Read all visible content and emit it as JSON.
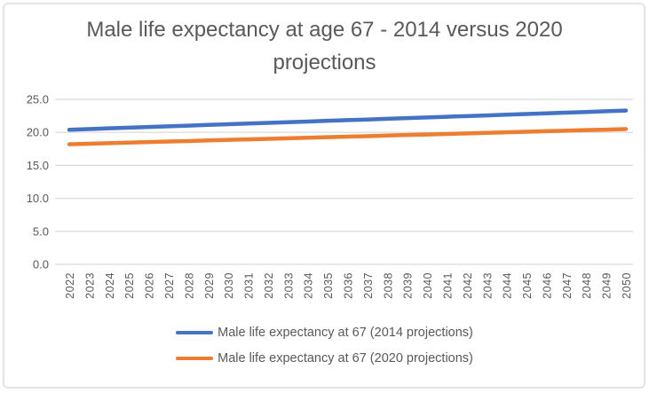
{
  "title": {
    "line1": "Male life expectancy at age 67 - 2014 versus 2020",
    "line2": "projections",
    "color": "#595959"
  },
  "colors": {
    "grid": "#d9d9d9",
    "axis_text": "#595959",
    "border": "#e4e4e4",
    "series_2014": "#4472C4",
    "series_2020": "#ED7D31"
  },
  "chart_data": {
    "type": "line",
    "title": "Male life expectancy at age 67 - 2014 versus 2020 projections",
    "xlabel": "",
    "ylabel": "",
    "ylim": [
      0,
      25
    ],
    "y_ticks": [
      "0.0",
      "5.0",
      "10.0",
      "15.0",
      "20.0",
      "25.0"
    ],
    "grid": "horizontal",
    "legend_position": "bottom",
    "x": [
      "2022",
      "2023",
      "2024",
      "2025",
      "2026",
      "2027",
      "2028",
      "2029",
      "2030",
      "2031",
      "2032",
      "2033",
      "2034",
      "2035",
      "2036",
      "2037",
      "2038",
      "2039",
      "2040",
      "2041",
      "2042",
      "2043",
      "2044",
      "2045",
      "2046",
      "2047",
      "2048",
      "2049",
      "2050"
    ],
    "series": [
      {
        "name": "Male life expectancy at 67 (2014 projections)",
        "color": "#4472C4",
        "values": [
          20.4,
          20.5,
          20.61,
          20.71,
          20.81,
          20.92,
          21.02,
          21.13,
          21.23,
          21.33,
          21.44,
          21.54,
          21.64,
          21.75,
          21.85,
          21.95,
          22.06,
          22.16,
          22.26,
          22.37,
          22.47,
          22.57,
          22.68,
          22.78,
          22.89,
          22.99,
          23.09,
          23.2,
          23.3
        ]
      },
      {
        "name": "Male life expectancy at 67 (2020 projections)",
        "color": "#ED7D31",
        "values": [
          18.2,
          18.28,
          18.36,
          18.45,
          18.53,
          18.61,
          18.69,
          18.78,
          18.86,
          18.94,
          19.02,
          19.1,
          19.19,
          19.27,
          19.35,
          19.43,
          19.52,
          19.6,
          19.68,
          19.76,
          19.84,
          19.93,
          20.01,
          20.09,
          20.17,
          20.26,
          20.34,
          20.42,
          20.5
        ]
      }
    ]
  }
}
